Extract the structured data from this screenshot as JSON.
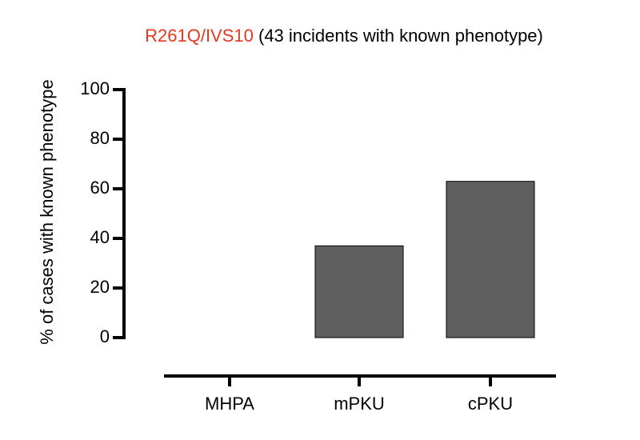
{
  "chart_data": {
    "type": "bar",
    "title_parts": [
      {
        "text": "R261Q/IVS10",
        "color": "#e8371f"
      },
      {
        "text": " (43 incidents with known phenotype)",
        "color": "#000000"
      }
    ],
    "y_label": "% of cases with known phenotype",
    "categories": [
      "MHPA",
      "mPKU",
      "cPKU"
    ],
    "values": [
      0,
      37,
      63
    ],
    "color": "#5f5f5f",
    "ylim": [
      0,
      100
    ],
    "yticks": [
      0,
      20,
      40,
      60,
      80,
      100
    ],
    "grid": false
  }
}
